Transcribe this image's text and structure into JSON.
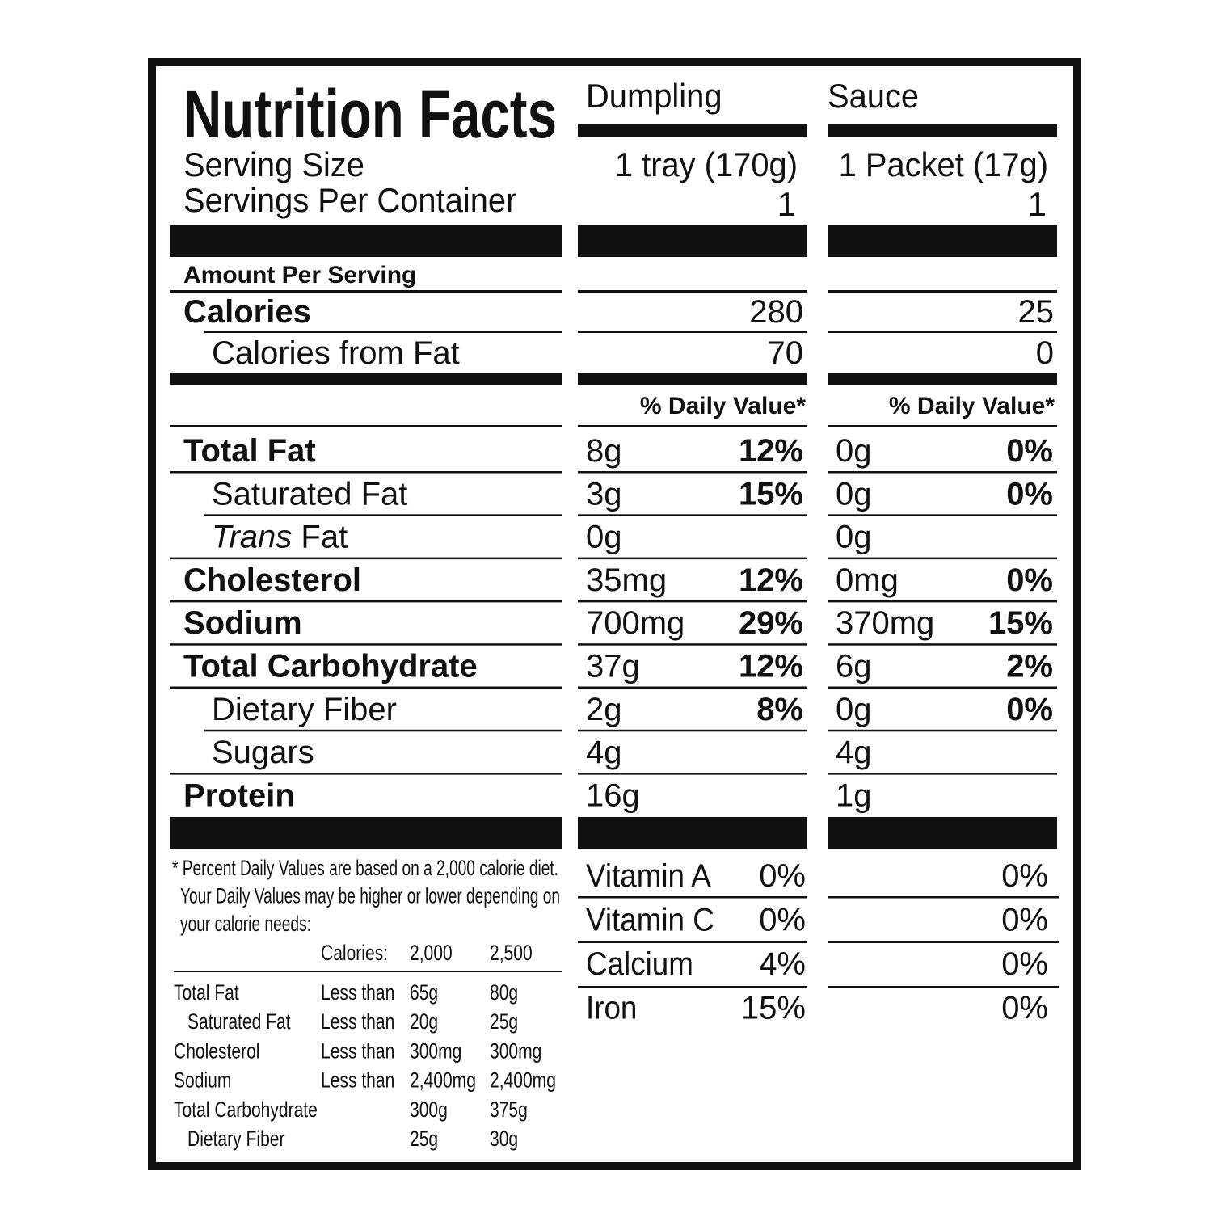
{
  "title": "Nutrition Facts",
  "columns": [
    "Dumpling",
    "Sauce"
  ],
  "serving_size": {
    "label": "Serving Size",
    "values": [
      "1 tray (170g)",
      "1 Packet (17g)"
    ]
  },
  "servings_per_container": {
    "label": "Servings Per Container",
    "values": [
      "1",
      "1"
    ]
  },
  "amount_per_serving": "Amount Per Serving",
  "calories": {
    "label": "Calories",
    "values": [
      "280",
      "25"
    ]
  },
  "calories_from_fat": {
    "label": "Calories from Fat",
    "values": [
      "70",
      "0"
    ]
  },
  "daily_value_header": [
    "% Daily Value*",
    "% Daily Value*"
  ],
  "nutrients": [
    {
      "label": "Total Fat",
      "indent": false,
      "amounts": [
        "8g",
        "0g"
      ],
      "daily_values": [
        "12%",
        "0%"
      ]
    },
    {
      "label": "Saturated Fat",
      "indent": true,
      "amounts": [
        "3g",
        "0g"
      ],
      "daily_values": [
        "15%",
        "0%"
      ]
    },
    {
      "label_italic": "Trans",
      "label": "Fat",
      "indent": true,
      "amounts": [
        "0g",
        "0g"
      ],
      "daily_values": [
        null,
        null
      ]
    },
    {
      "label": "Cholesterol",
      "indent": false,
      "amounts": [
        "35mg",
        "0mg"
      ],
      "daily_values": [
        "12%",
        "0%"
      ]
    },
    {
      "label": "Sodium",
      "indent": false,
      "amounts": [
        "700mg",
        "370mg"
      ],
      "daily_values": [
        "29%",
        "15%"
      ]
    },
    {
      "label": "Total Carbohydrate",
      "indent": false,
      "amounts": [
        "37g",
        "6g"
      ],
      "daily_values": [
        "12%",
        "2%"
      ]
    },
    {
      "label": "Dietary Fiber",
      "indent": true,
      "amounts": [
        "2g",
        "0g"
      ],
      "daily_values": [
        "8%",
        "0%"
      ]
    },
    {
      "label": "Sugars",
      "indent": true,
      "amounts": [
        "4g",
        "4g"
      ],
      "daily_values": [
        null,
        null
      ]
    },
    {
      "label": "Protein",
      "indent": false,
      "amounts": [
        "16g",
        "1g"
      ],
      "daily_values": [
        null,
        null
      ]
    }
  ],
  "vitamins": [
    {
      "label": "Vitamin A",
      "values": [
        "0%",
        "0%"
      ]
    },
    {
      "label": "Vitamin C",
      "values": [
        "0%",
        "0%"
      ]
    },
    {
      "label": "Calcium",
      "values": [
        "4%",
        "0%"
      ]
    },
    {
      "label": "Iron",
      "values": [
        "15%",
        "0%"
      ]
    }
  ],
  "footnote": {
    "lines": [
      "* Percent Daily Values are based on a 2,000 calorie diet.",
      "Your Daily Values may be higher or lower depending on",
      "your calorie needs:"
    ],
    "table": {
      "header": [
        "Calories:",
        "2,000",
        "2,500"
      ],
      "rows": [
        {
          "label": "Total Fat",
          "indent": false,
          "limit": "Less than",
          "values": [
            "65g",
            "80g"
          ]
        },
        {
          "label": "Saturated Fat",
          "indent": true,
          "limit": "Less than",
          "values": [
            "20g",
            "25g"
          ]
        },
        {
          "label": "Cholesterol",
          "indent": false,
          "limit": "Less than",
          "values": [
            "300mg",
            "300mg"
          ]
        },
        {
          "label": "Sodium",
          "indent": false,
          "limit": "Less than",
          "values": [
            "2,400mg",
            "2,400mg"
          ]
        },
        {
          "label": "Total Carbohydrate",
          "indent": false,
          "values": [
            "300g",
            "375g"
          ]
        },
        {
          "label": "Dietary Fiber",
          "indent": true,
          "values": [
            "25g",
            "30g"
          ]
        }
      ]
    }
  }
}
